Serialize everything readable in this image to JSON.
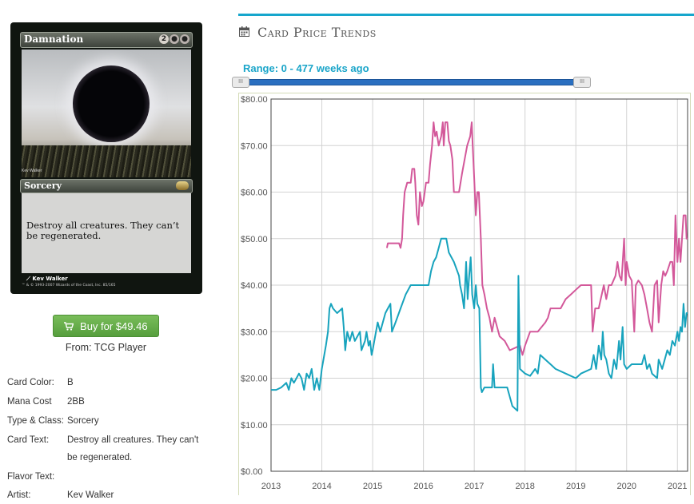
{
  "card": {
    "name": "Damnation",
    "mana_symbols": [
      "2",
      "●",
      "●"
    ],
    "type_line": "Sorcery",
    "rules_text": "Destroy all creatures. They can’t be regenerated.",
    "artist": "Kev Walker",
    "art_credit_small": "Kev Walker",
    "copyright": "™ & © 1993-2007 Wizards of the Coast, Inc. 85/165"
  },
  "buy": {
    "label": "Buy for $49.46",
    "from": "From: TCG Player"
  },
  "details": {
    "color_label": "Card Color:",
    "color_value": "B",
    "mana_label": "Mana Cost",
    "mana_value": "2BB",
    "type_label": "Type & Class:",
    "type_value": "Sorcery",
    "text_label": "Card Text:",
    "text_value": "Destroy all creatures. They can't be regenerated.",
    "flavor_label": "Flavor Text:",
    "flavor_value": "",
    "artist_label": "Artist:",
    "artist_value": "Kev Walker"
  },
  "panel": {
    "title": "Card Price Trends",
    "range_label": "Range: 0 - 477 weeks ago",
    "handle_glyph": "III"
  },
  "colors": {
    "accent": "#16a6cc",
    "series_pink": "#d3589a",
    "series_teal": "#17a3bd",
    "button_green": "#66ac48"
  },
  "chart_data": {
    "type": "line",
    "title": "",
    "xlabel": "",
    "ylabel": "",
    "xlim": [
      2013.0,
      2021.2
    ],
    "ylim": [
      0,
      80
    ],
    "x_ticks": [
      "2013",
      "2014",
      "2015",
      "2016",
      "2017",
      "2018",
      "2019",
      "2020",
      "2021"
    ],
    "y_ticks": [
      "$0.00",
      "$10.00",
      "$20.00",
      "$30.00",
      "$40.00",
      "$50.00",
      "$60.00",
      "$70.00",
      "$80.00"
    ],
    "y_tick_values": [
      0,
      10,
      20,
      30,
      40,
      50,
      60,
      70,
      80
    ],
    "grid": true,
    "legend": "none",
    "series": [
      {
        "color": "#d3589a",
        "points": [
          [
            2015.28,
            48
          ],
          [
            2015.3,
            49
          ],
          [
            2015.52,
            49
          ],
          [
            2015.55,
            48
          ],
          [
            2015.58,
            50
          ],
          [
            2015.6,
            55
          ],
          [
            2015.63,
            60
          ],
          [
            2015.68,
            62
          ],
          [
            2015.75,
            62
          ],
          [
            2015.78,
            65
          ],
          [
            2015.82,
            65
          ],
          [
            2015.84,
            62
          ],
          [
            2015.87,
            55
          ],
          [
            2015.9,
            53
          ],
          [
            2015.93,
            60
          ],
          [
            2015.97,
            57
          ],
          [
            2016.0,
            58
          ],
          [
            2016.05,
            62
          ],
          [
            2016.1,
            62
          ],
          [
            2016.13,
            66
          ],
          [
            2016.17,
            70
          ],
          [
            2016.2,
            75
          ],
          [
            2016.23,
            72
          ],
          [
            2016.26,
            73
          ],
          [
            2016.3,
            70
          ],
          [
            2016.35,
            72
          ],
          [
            2016.38,
            75
          ],
          [
            2016.4,
            70
          ],
          [
            2016.43,
            75
          ],
          [
            2016.47,
            75
          ],
          [
            2016.5,
            71
          ],
          [
            2016.53,
            70
          ],
          [
            2016.57,
            67
          ],
          [
            2016.6,
            60
          ],
          [
            2016.7,
            60
          ],
          [
            2016.76,
            64
          ],
          [
            2016.86,
            70
          ],
          [
            2016.92,
            72
          ],
          [
            2016.95,
            75
          ],
          [
            2016.97,
            70
          ],
          [
            2017.0,
            63
          ],
          [
            2017.03,
            55
          ],
          [
            2017.06,
            60
          ],
          [
            2017.09,
            60
          ],
          [
            2017.13,
            50
          ],
          [
            2017.16,
            40
          ],
          [
            2017.2,
            38
          ],
          [
            2017.25,
            35
          ],
          [
            2017.3,
            33
          ],
          [
            2017.35,
            30
          ],
          [
            2017.4,
            33
          ],
          [
            2017.45,
            31
          ],
          [
            2017.5,
            29
          ],
          [
            2017.6,
            28
          ],
          [
            2017.7,
            26
          ],
          [
            2017.8,
            26.5
          ],
          [
            2017.9,
            27
          ],
          [
            2017.95,
            25
          ],
          [
            2018.0,
            27
          ],
          [
            2018.1,
            30
          ],
          [
            2018.25,
            30
          ],
          [
            2018.4,
            32
          ],
          [
            2018.45,
            33
          ],
          [
            2018.5,
            35
          ],
          [
            2018.7,
            35
          ],
          [
            2018.8,
            37
          ],
          [
            2018.9,
            38
          ],
          [
            2019.0,
            39
          ],
          [
            2019.1,
            40
          ],
          [
            2019.3,
            40
          ],
          [
            2019.33,
            30
          ],
          [
            2019.38,
            35
          ],
          [
            2019.45,
            35
          ],
          [
            2019.55,
            40
          ],
          [
            2019.6,
            37
          ],
          [
            2019.65,
            40
          ],
          [
            2019.7,
            40
          ],
          [
            2019.78,
            42
          ],
          [
            2019.82,
            45
          ],
          [
            2019.86,
            42
          ],
          [
            2019.9,
            41
          ],
          [
            2019.95,
            50
          ],
          [
            2019.98,
            40
          ],
          [
            2020.0,
            45
          ],
          [
            2020.05,
            42
          ],
          [
            2020.1,
            41
          ],
          [
            2020.15,
            30
          ],
          [
            2020.18,
            40
          ],
          [
            2020.23,
            41
          ],
          [
            2020.3,
            40
          ],
          [
            2020.35,
            38
          ],
          [
            2020.4,
            35
          ],
          [
            2020.45,
            32
          ],
          [
            2020.5,
            30
          ],
          [
            2020.55,
            40
          ],
          [
            2020.6,
            41
          ],
          [
            2020.63,
            32
          ],
          [
            2020.68,
            40
          ],
          [
            2020.72,
            43
          ],
          [
            2020.76,
            42
          ],
          [
            2020.8,
            43
          ],
          [
            2020.86,
            45
          ],
          [
            2020.9,
            45
          ],
          [
            2020.93,
            40
          ],
          [
            2020.96,
            55
          ],
          [
            2020.98,
            50
          ],
          [
            2021.0,
            45
          ],
          [
            2021.03,
            50
          ],
          [
            2021.06,
            45
          ],
          [
            2021.09,
            50
          ],
          [
            2021.12,
            55
          ],
          [
            2021.16,
            55
          ],
          [
            2021.18,
            50
          ],
          [
            2021.2,
            50
          ]
        ]
      },
      {
        "color": "#17a3bd",
        "points": [
          [
            2013.0,
            17.5
          ],
          [
            2013.1,
            17.5
          ],
          [
            2013.2,
            18
          ],
          [
            2013.3,
            19
          ],
          [
            2013.35,
            17.5
          ],
          [
            2013.4,
            20
          ],
          [
            2013.45,
            19
          ],
          [
            2013.5,
            20
          ],
          [
            2013.55,
            21
          ],
          [
            2013.6,
            20
          ],
          [
            2013.65,
            17.5
          ],
          [
            2013.7,
            21
          ],
          [
            2013.75,
            20
          ],
          [
            2013.8,
            22
          ],
          [
            2013.85,
            17.5
          ],
          [
            2013.9,
            20
          ],
          [
            2013.95,
            17.5
          ],
          [
            2014.0,
            22
          ],
          [
            2014.08,
            27
          ],
          [
            2014.12,
            30
          ],
          [
            2014.15,
            35
          ],
          [
            2014.18,
            36
          ],
          [
            2014.22,
            35
          ],
          [
            2014.3,
            34
          ],
          [
            2014.4,
            35
          ],
          [
            2014.43,
            31
          ],
          [
            2014.46,
            26
          ],
          [
            2014.5,
            30
          ],
          [
            2014.55,
            28
          ],
          [
            2014.6,
            30
          ],
          [
            2014.65,
            28
          ],
          [
            2014.75,
            30
          ],
          [
            2014.78,
            26
          ],
          [
            2014.85,
            28
          ],
          [
            2014.88,
            30
          ],
          [
            2014.92,
            27
          ],
          [
            2014.95,
            28
          ],
          [
            2014.98,
            25
          ],
          [
            2015.0,
            26
          ],
          [
            2015.05,
            29
          ],
          [
            2015.1,
            32
          ],
          [
            2015.15,
            30
          ],
          [
            2015.25,
            34
          ],
          [
            2015.3,
            35
          ],
          [
            2015.35,
            36
          ],
          [
            2015.38,
            30
          ],
          [
            2015.45,
            32
          ],
          [
            2015.55,
            35
          ],
          [
            2015.65,
            38
          ],
          [
            2015.75,
            40
          ],
          [
            2016.0,
            40
          ],
          [
            2016.1,
            40
          ],
          [
            2016.15,
            43
          ],
          [
            2016.2,
            45
          ],
          [
            2016.25,
            46
          ],
          [
            2016.3,
            48
          ],
          [
            2016.35,
            50
          ],
          [
            2016.45,
            50
          ],
          [
            2016.5,
            47
          ],
          [
            2016.6,
            45
          ],
          [
            2016.7,
            42
          ],
          [
            2016.72,
            40
          ],
          [
            2016.76,
            38
          ],
          [
            2016.8,
            35
          ],
          [
            2016.84,
            45
          ],
          [
            2016.87,
            37
          ],
          [
            2016.9,
            42
          ],
          [
            2016.93,
            46
          ],
          [
            2016.96,
            38
          ],
          [
            2017.0,
            35
          ],
          [
            2017.03,
            40
          ],
          [
            2017.06,
            36
          ],
          [
            2017.1,
            35
          ],
          [
            2017.13,
            18
          ],
          [
            2017.15,
            17
          ],
          [
            2017.2,
            18
          ],
          [
            2017.35,
            18
          ],
          [
            2017.37,
            23
          ],
          [
            2017.4,
            18
          ],
          [
            2017.65,
            18
          ],
          [
            2017.75,
            14
          ],
          [
            2017.85,
            13
          ],
          [
            2017.87,
            42
          ],
          [
            2017.9,
            22
          ],
          [
            2018.0,
            21
          ],
          [
            2018.1,
            20.5
          ],
          [
            2018.2,
            22
          ],
          [
            2018.25,
            21
          ],
          [
            2018.3,
            25
          ],
          [
            2018.4,
            24
          ],
          [
            2018.5,
            23
          ],
          [
            2018.6,
            22
          ],
          [
            2018.8,
            21
          ],
          [
            2019.0,
            20
          ],
          [
            2019.1,
            21
          ],
          [
            2019.2,
            21.5
          ],
          [
            2019.3,
            22
          ],
          [
            2019.35,
            25
          ],
          [
            2019.4,
            22
          ],
          [
            2019.45,
            27
          ],
          [
            2019.5,
            24
          ],
          [
            2019.53,
            30
          ],
          [
            2019.56,
            25
          ],
          [
            2019.6,
            24
          ],
          [
            2019.65,
            21
          ],
          [
            2019.7,
            20
          ],
          [
            2019.75,
            24
          ],
          [
            2019.8,
            22
          ],
          [
            2019.85,
            28
          ],
          [
            2019.88,
            24
          ],
          [
            2019.92,
            31
          ],
          [
            2019.95,
            23
          ],
          [
            2020.0,
            22
          ],
          [
            2020.1,
            23
          ],
          [
            2020.2,
            23
          ],
          [
            2020.3,
            23
          ],
          [
            2020.35,
            25
          ],
          [
            2020.4,
            22
          ],
          [
            2020.45,
            23
          ],
          [
            2020.5,
            21
          ],
          [
            2020.6,
            20
          ],
          [
            2020.63,
            24
          ],
          [
            2020.7,
            22
          ],
          [
            2020.75,
            24
          ],
          [
            2020.8,
            26
          ],
          [
            2020.85,
            25
          ],
          [
            2020.9,
            28
          ],
          [
            2020.95,
            27
          ],
          [
            2021.0,
            30
          ],
          [
            2021.03,
            28
          ],
          [
            2021.06,
            31
          ],
          [
            2021.09,
            30
          ],
          [
            2021.12,
            36
          ],
          [
            2021.15,
            31
          ],
          [
            2021.18,
            34
          ],
          [
            2021.2,
            34
          ]
        ]
      }
    ]
  }
}
